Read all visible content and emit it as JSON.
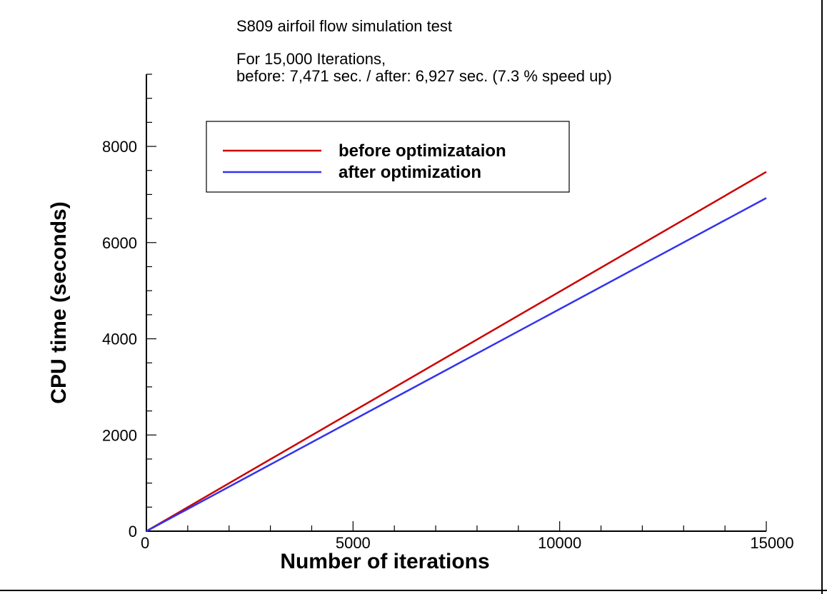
{
  "annotations": {
    "title": "S809 airfoil flow simulation test",
    "line1": "For 15,000 Iterations,",
    "line2": "before: 7,471 sec. / after: 6,927 sec. (7.3 % speed up)"
  },
  "chart_data": {
    "type": "line",
    "xlabel": "Number of iterations",
    "ylabel": "CPU time (seconds)",
    "xlim": [
      0,
      15000
    ],
    "ylim": [
      0,
      9500
    ],
    "xticks": [
      0,
      5000,
      10000,
      15000
    ],
    "yticks": [
      0,
      2000,
      4000,
      6000,
      8000
    ],
    "xtick_labels": [
      "0",
      "5000",
      "10000",
      "15000"
    ],
    "ytick_labels": [
      "0",
      "2000",
      "4000",
      "6000",
      "8000"
    ],
    "grid": false,
    "legend_position": "top-left",
    "series": [
      {
        "name": "before optimizataion",
        "color": "#cc0000",
        "x": [
          0,
          15000
        ],
        "y": [
          0,
          7471
        ]
      },
      {
        "name": "after optimization",
        "color": "#3333ee",
        "x": [
          0,
          15000
        ],
        "y": [
          0,
          6927
        ]
      }
    ]
  }
}
